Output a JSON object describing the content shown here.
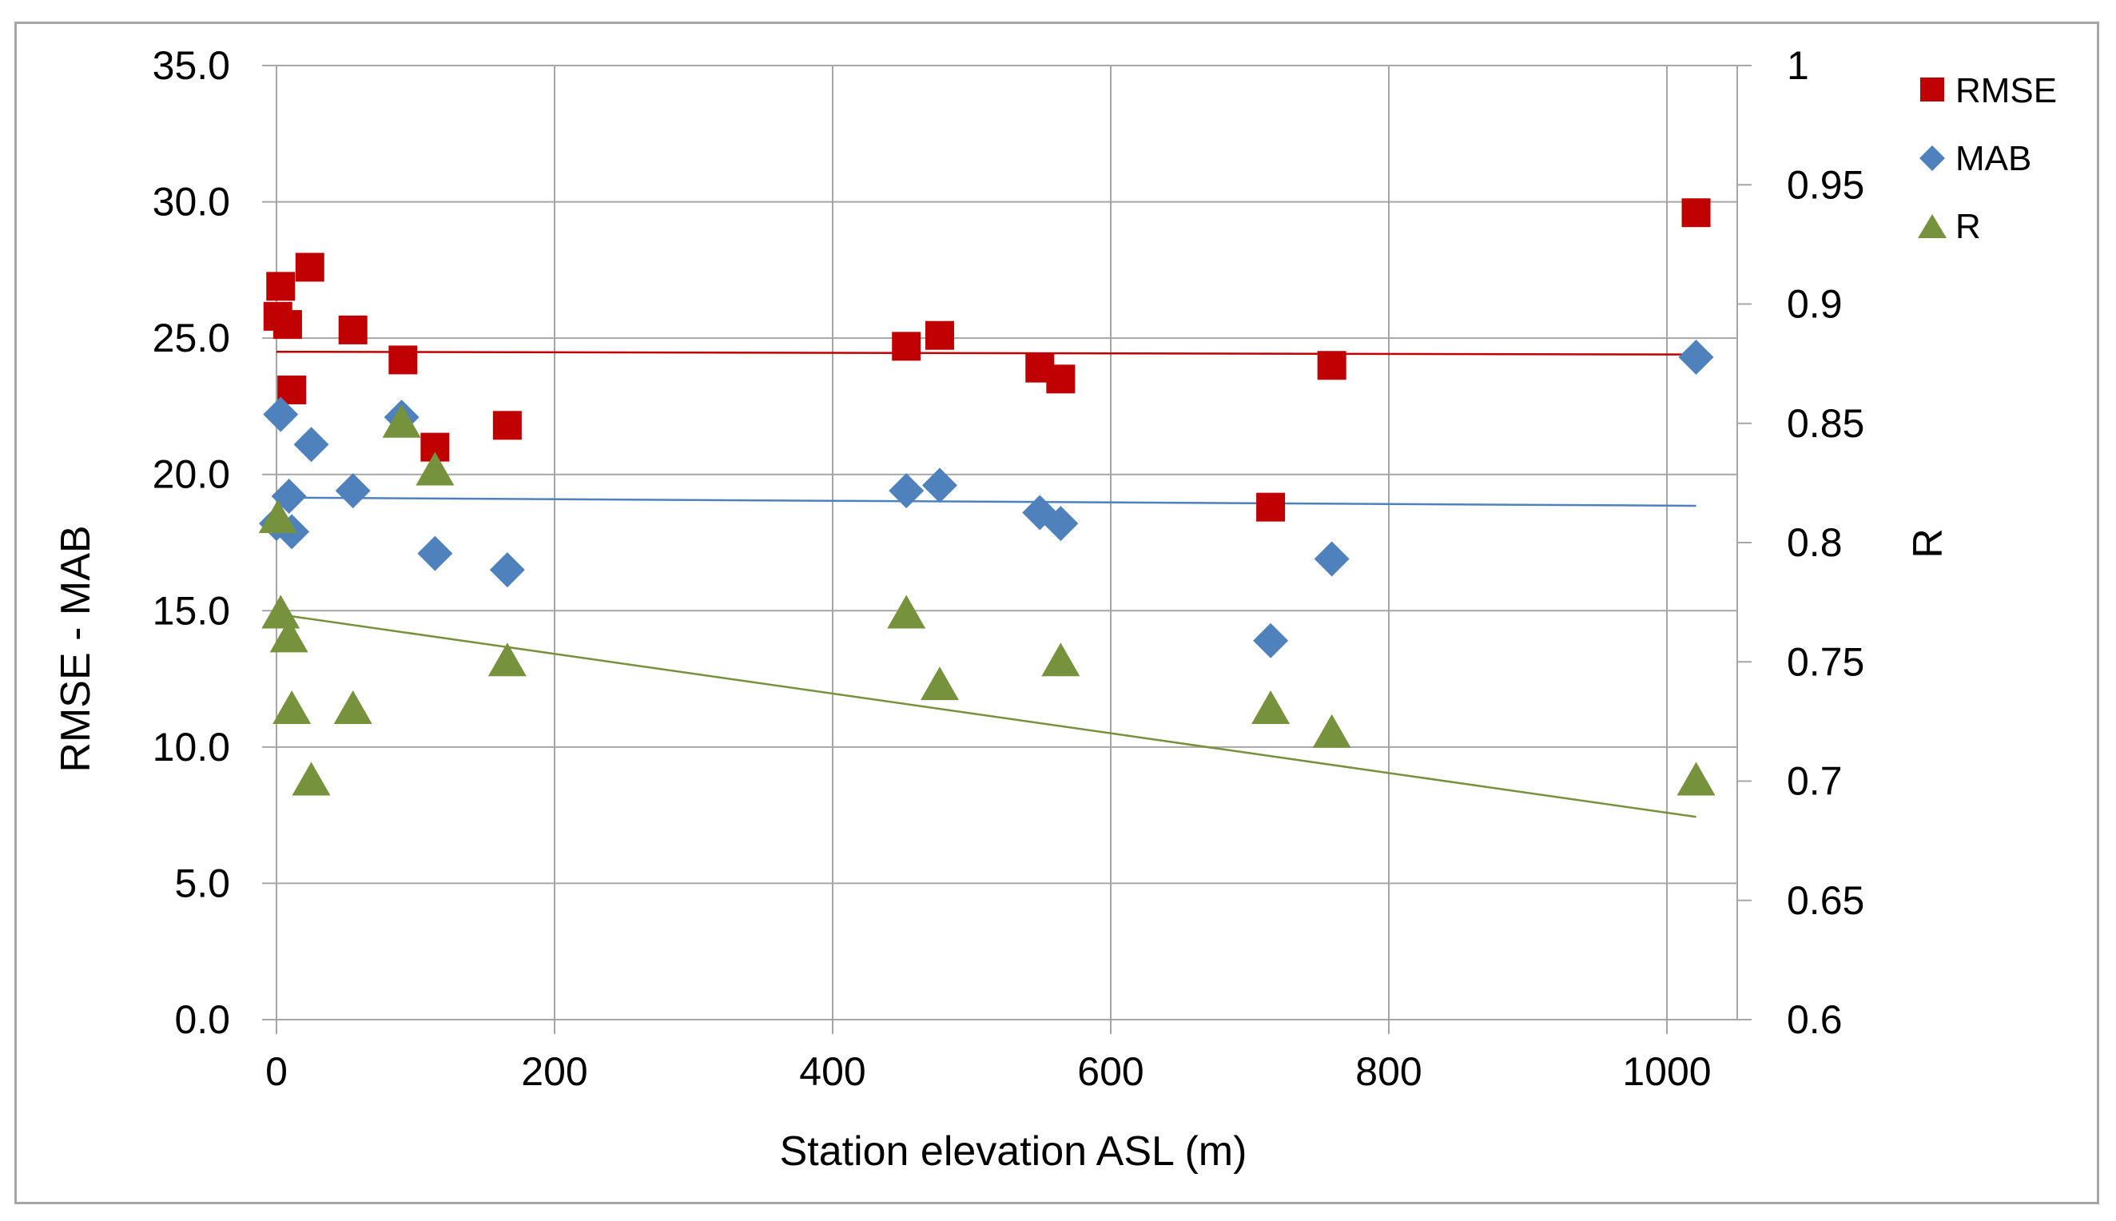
{
  "chart_data": {
    "type": "scatter",
    "title": "",
    "xlabel": "Station elevation ASL (m)",
    "ylabel": "RMSE - MAB",
    "y2label": "R",
    "xlim": [
      0,
      1050
    ],
    "ylim": [
      0,
      35
    ],
    "y2lim": [
      0.6,
      1.0
    ],
    "xticks": [
      "0",
      "200",
      "400",
      "600",
      "800",
      "1000"
    ],
    "yticks": [
      "0.0",
      "5.0",
      "10.0",
      "15.0",
      "20.0",
      "25.0",
      "30.0",
      "35.0"
    ],
    "y2ticks": [
      "0.6",
      "0.65",
      "0.7",
      "0.75",
      "0.8",
      "0.85",
      "0.9",
      "0.95",
      "1"
    ],
    "grid": true,
    "legend_position": "right",
    "series": [
      {
        "name": "RMSE",
        "axis": "left",
        "marker": "square",
        "color": "#c00000",
        "x": [
          1,
          3,
          8,
          11,
          24,
          55,
          91,
          114,
          166,
          453,
          477,
          549,
          564,
          715,
          759,
          1021
        ],
        "y": [
          25.8,
          26.9,
          25.5,
          23.1,
          27.6,
          25.3,
          24.2,
          21.0,
          21.8,
          24.7,
          25.1,
          23.9,
          23.5,
          18.8,
          24.0,
          29.6
        ],
        "trend": [
          24.5,
          24.4
        ]
      },
      {
        "name": "MAB",
        "axis": "left",
        "marker": "diamond",
        "color": "#4f81bd",
        "x": [
          0,
          3,
          9,
          11,
          25,
          55,
          90,
          114,
          166,
          453,
          477,
          549,
          564,
          715,
          759,
          1021
        ],
        "y": [
          18.2,
          22.2,
          19.2,
          17.9,
          21.1,
          19.4,
          22.1,
          17.1,
          16.5,
          19.4,
          19.6,
          18.6,
          18.2,
          13.9,
          16.9,
          24.3
        ],
        "trend": [
          19.15,
          18.85
        ]
      },
      {
        "name": "R",
        "axis": "right",
        "marker": "triangle",
        "color": "#76923c",
        "x": [
          1,
          3,
          9,
          11,
          25,
          55,
          90,
          114,
          166,
          453,
          477,
          564,
          715,
          759,
          1021
        ],
        "y": [
          0.81,
          0.77,
          0.76,
          0.73,
          0.7,
          0.73,
          0.85,
          0.83,
          0.75,
          0.77,
          0.74,
          0.75,
          0.73,
          0.72,
          0.7
        ],
        "trend": [
          0.77,
          0.685
        ]
      }
    ]
  }
}
